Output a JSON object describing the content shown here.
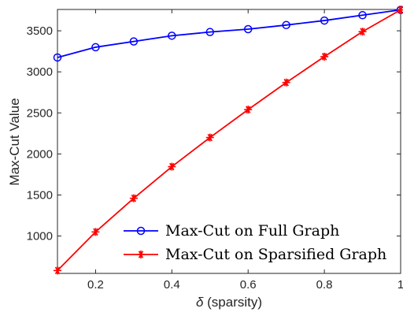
{
  "chart_data": {
    "type": "line",
    "xlabel_symbol": "δ",
    "xlabel_rest": " (sparsity)",
    "ylabel": "Max-Cut Value",
    "xlim": [
      0.1,
      1.0
    ],
    "ylim": [
      545,
      3760
    ],
    "x_ticks": [
      "0.2",
      "0.4",
      "0.6",
      "0.8",
      "1"
    ],
    "y_ticks": [
      "1000",
      "1500",
      "2000",
      "2500",
      "3000",
      "3500"
    ],
    "x": [
      0.1,
      0.2,
      0.3,
      0.4,
      0.5,
      0.6,
      0.7,
      0.8,
      0.9,
      1.0
    ],
    "series": [
      {
        "name": "Max-Cut on Full Graph",
        "color": "#0000ff",
        "marker": "circle",
        "values": [
          3175,
          3300,
          3370,
          3440,
          3485,
          3520,
          3570,
          3625,
          3690,
          3755
        ]
      },
      {
        "name": "Max-Cut on Sparsified Graph",
        "color": "#ff0000",
        "marker": "asterisk",
        "values": [
          580,
          1050,
          1460,
          1845,
          2200,
          2540,
          2870,
          3185,
          3490,
          3755
        ]
      }
    ],
    "legend_position": "bottom-right",
    "grid": false
  }
}
